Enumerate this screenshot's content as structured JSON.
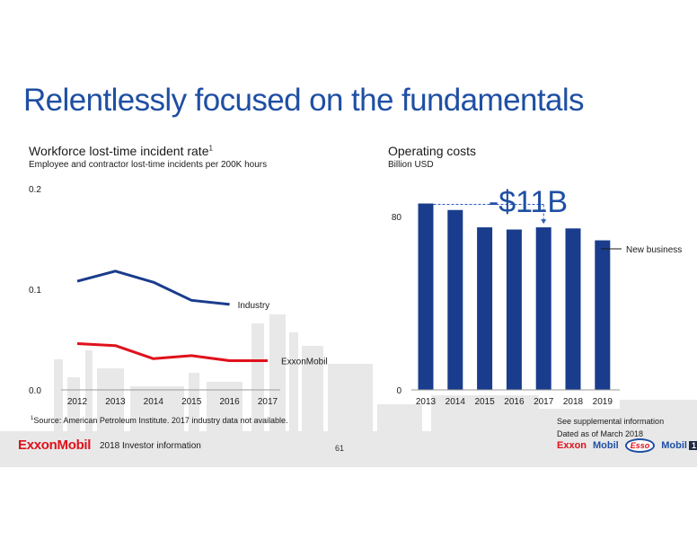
{
  "title": "Relentlessly focused on the fundamentals",
  "left_chart": {
    "title": "Workforce lost-time incident rate",
    "title_sup": "1",
    "subtitle": "Employee and contractor lost-time incidents per 200K hours"
  },
  "right_chart": {
    "title": "Operating costs",
    "subtitle": "Billion USD",
    "callout": "-$11B",
    "legend_label": "New business"
  },
  "footnote": {
    "sup": "1",
    "text": "Source: American Petroleum Institute. 2017 industry data not available."
  },
  "supplemental": {
    "line1": "See supplemental information",
    "line2": "Dated as of March 2018"
  },
  "footer": {
    "logo": "ExxonMobil",
    "text": "2018 Investor information",
    "page": "61"
  },
  "brands": {
    "exxon": "Exxon",
    "mobil": "Mobil",
    "esso": "Esso",
    "mobil1": "Mobil",
    "mobil1_num": "1"
  },
  "colors": {
    "brand_blue": "#1f4fa3",
    "industry_line": "#1a3c8c",
    "exxonmobil_line": "#e0111b",
    "bar": "#1a3c8c",
    "background_art": "#e6e6e6"
  },
  "chart_data": [
    {
      "type": "line",
      "x": [
        2012,
        2013,
        2014,
        2015,
        2016,
        2017
      ],
      "series": [
        {
          "name": "Industry",
          "values": [
            0.108,
            0.118,
            0.107,
            0.089,
            0.085,
            null
          ],
          "color": "#1a3c8c"
        },
        {
          "name": "ExxonMobil",
          "values": [
            0.046,
            0.044,
            0.031,
            0.034,
            0.029,
            0.029
          ],
          "color": "#e0111b"
        }
      ],
      "ylim": [
        0,
        0.2
      ],
      "yticks": [
        "0.0",
        "0.1",
        "0.2"
      ],
      "xticks": [
        "2012",
        "2013",
        "2014",
        "2015",
        "2016",
        "2017"
      ],
      "grid": false,
      "legend": "inline labels at line ends"
    },
    {
      "type": "bar",
      "categories": [
        "2013",
        "2014",
        "2015",
        "2016",
        "2017",
        "2018",
        "2019"
      ],
      "values": [
        86,
        83,
        75,
        74,
        75,
        74.5,
        69
      ],
      "ylim": [
        0,
        97
      ],
      "yticks": [
        "0",
        "80"
      ],
      "annotation": {
        "text": "-$11B",
        "from": "2013",
        "to": "2017"
      },
      "legend": "New business (right side of 2019 bar)",
      "color": "#1a3c8c"
    }
  ]
}
